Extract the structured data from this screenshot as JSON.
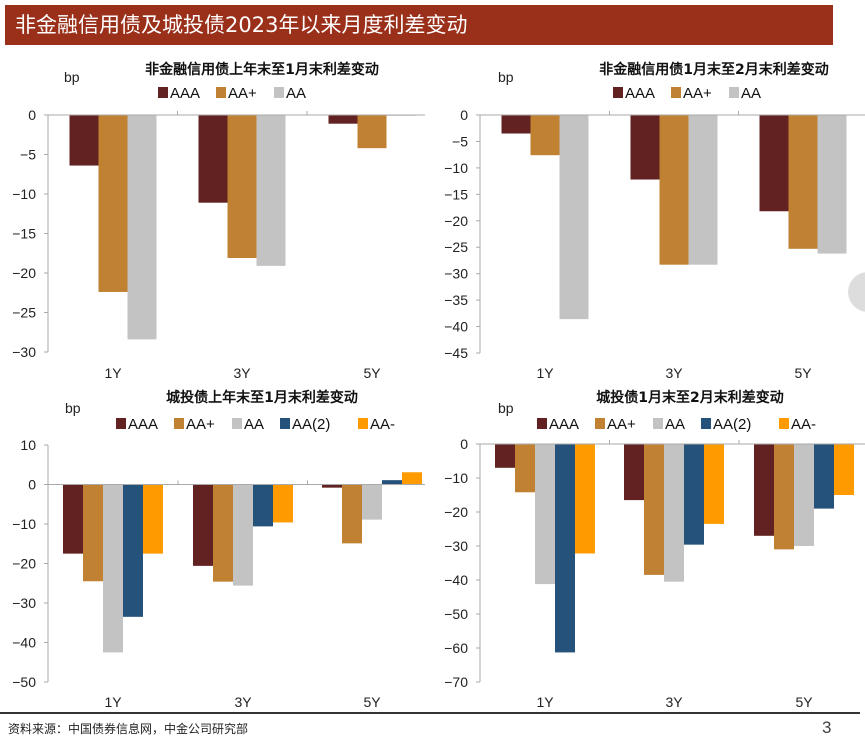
{
  "header": {
    "title": "非金融信用债及城投债2023年以来月度利差变动"
  },
  "footer": {
    "source": "资料来源：中国债券信息网，中金公司研究部",
    "page": "3"
  },
  "colors": {
    "AAA": "#622222",
    "AA+": "#c08232",
    "AA": "#c3c3c3",
    "AA(2)": "#24527a",
    "AA-": "#ff9a00",
    "header": "#9a2f1a"
  },
  "chart_data": [
    {
      "type": "bar",
      "title": "非金融信用债上年末至1月末利差变动",
      "ylabel": "bp",
      "xlabel": "",
      "categories": [
        "1Y",
        "3Y",
        "5Y"
      ],
      "ylim": [
        -30,
        0
      ],
      "yticks": [
        0,
        -5,
        -10,
        -15,
        -20,
        -25,
        -30
      ],
      "legend": "top",
      "grid": false,
      "series": [
        {
          "name": "AAA",
          "values": [
            -6.4,
            -11.1,
            -1.1
          ]
        },
        {
          "name": "AA+",
          "values": [
            -22.4,
            -18.1,
            -4.2
          ]
        },
        {
          "name": "AA",
          "values": [
            -28.4,
            -19.1,
            -0.1
          ]
        }
      ]
    },
    {
      "type": "bar",
      "title": "非金融信用债1月末至2月末利差变动",
      "ylabel": "bp",
      "xlabel": "",
      "categories": [
        "1Y",
        "3Y",
        "5Y"
      ],
      "ylim": [
        -45,
        0
      ],
      "yticks": [
        0,
        -5,
        -10,
        -15,
        -20,
        -25,
        -30,
        -35,
        -40,
        -45
      ],
      "legend": "top",
      "grid": false,
      "series": [
        {
          "name": "AAA",
          "values": [
            -3.5,
            -12.2,
            -18.2
          ]
        },
        {
          "name": "AA+",
          "values": [
            -7.6,
            -28.3,
            -25.3
          ]
        },
        {
          "name": "AA",
          "values": [
            -38.6,
            -28.3,
            -26.2
          ]
        }
      ]
    },
    {
      "type": "bar",
      "title": "城投债上年末至1月末利差变动",
      "ylabel": "bp",
      "xlabel": "",
      "categories": [
        "1Y",
        "3Y",
        "5Y"
      ],
      "ylim": [
        -50,
        10
      ],
      "yticks": [
        10,
        0,
        -10,
        -20,
        -30,
        -40,
        -50
      ],
      "legend": "top",
      "grid": false,
      "series": [
        {
          "name": "AAA",
          "values": [
            -17.5,
            -20.6,
            -0.8
          ]
        },
        {
          "name": "AA+",
          "values": [
            -24.5,
            -24.6,
            -14.9
          ]
        },
        {
          "name": "AA",
          "values": [
            -42.5,
            -25.6,
            -8.9
          ]
        },
        {
          "name": "AA(2)",
          "values": [
            -33.5,
            -10.6,
            1.1
          ]
        },
        {
          "name": "AA-",
          "values": [
            -17.5,
            -9.6,
            3.1
          ]
        }
      ]
    },
    {
      "type": "bar",
      "title": "城投债1月末至2月末利差变动",
      "ylabel": "bp",
      "xlabel": "",
      "categories": [
        "1Y",
        "3Y",
        "5Y"
      ],
      "ylim": [
        -70,
        0
      ],
      "yticks": [
        0,
        -10,
        -20,
        -30,
        -40,
        -50,
        -60,
        -70
      ],
      "legend": "top",
      "grid": false,
      "series": [
        {
          "name": "AAA",
          "values": [
            -7.0,
            -16.5,
            -27.0
          ]
        },
        {
          "name": "AA+",
          "values": [
            -14.2,
            -38.5,
            -31.0
          ]
        },
        {
          "name": "AA",
          "values": [
            -41.2,
            -40.5,
            -30.0
          ]
        },
        {
          "name": "AA(2)",
          "values": [
            -61.3,
            -29.6,
            -19.0
          ]
        },
        {
          "name": "AA-",
          "values": [
            -32.2,
            -23.5,
            -15.0
          ]
        }
      ]
    }
  ]
}
